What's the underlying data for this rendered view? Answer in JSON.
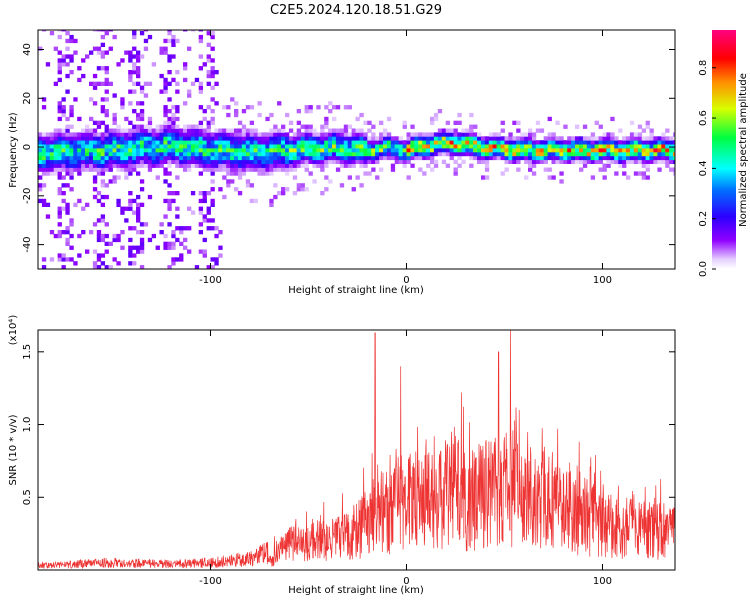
{
  "figure_title": "C2E5.2024.120.18.51.G29",
  "colors": {
    "snr_line": "#ee3333",
    "axes": "#000000",
    "background": "#ffffff"
  },
  "chart_data": [
    {
      "type": "heatmap",
      "title": "C2E5.2024.120.18.51.G29",
      "xlabel": "Height of straight line (km)",
      "ylabel": "Frequency (Hz)",
      "xlim": [
        -188,
        137
      ],
      "ylim": [
        -50,
        48
      ],
      "xticks": [
        -100,
        0,
        100
      ],
      "xtick_labels": [
        "-100",
        "0",
        "100"
      ],
      "yticks": [
        -40,
        -20,
        0,
        20,
        40
      ],
      "ytick_labels": [
        "-40",
        "-20",
        "0",
        "20",
        "40"
      ],
      "grid": false,
      "colormap": "rainbow (white/violet → blue → cyan → green → yellow → red → magenta)",
      "colorbar": {
        "label": "Normalized spectral amplitude",
        "range": [
          0,
          0.95
        ],
        "ticks": [
          0.0,
          0.2,
          0.4,
          0.6,
          0.8
        ],
        "tick_labels": [
          "0.0",
          "0.2",
          "0.4",
          "0.6",
          "0.8"
        ]
      },
      "ridge_center_hz": {
        "x": [
          -188,
          -150,
          -120,
          -100,
          -80,
          -60,
          -40,
          -20,
          -10,
          0,
          10,
          20,
          25,
          30,
          40,
          60,
          80,
          100,
          120,
          137
        ],
        "y": [
          -3,
          -2,
          0,
          -2,
          -3,
          -2,
          -1,
          -2,
          -1,
          -2,
          0,
          1,
          1,
          0,
          -1,
          -2,
          -2,
          -2,
          -2,
          -2
        ]
      }
    },
    {
      "type": "line",
      "xlabel": "Height of straight line (km)",
      "ylabel": "SNR (10 * v/v)",
      "y_multiplier": "(x10⁴)",
      "xlim": [
        -188,
        137
      ],
      "ylim": [
        0,
        1.65
      ],
      "xticks": [
        -100,
        0,
        100
      ],
      "xtick_labels": [
        "-100",
        "0",
        "100"
      ],
      "yticks": [
        0.5,
        1.0,
        1.5
      ],
      "ytick_labels": [
        "0.5",
        "1.0",
        "1.5"
      ],
      "grid": false,
      "series": [
        {
          "envelope_x": [
            -188,
            -150,
            -120,
            -100,
            -80,
            -70,
            -60,
            -50,
            -40,
            -30,
            -20,
            -10,
            0,
            10,
            20,
            25,
            30,
            40,
            50,
            55,
            60,
            70,
            80,
            90,
            100,
            110,
            120,
            130,
            137
          ],
          "envelope_y": [
            0.03,
            0.05,
            0.04,
            0.05,
            0.08,
            0.12,
            0.3,
            0.32,
            0.35,
            0.4,
            0.55,
            0.7,
            0.85,
            0.8,
            0.95,
            1.0,
            0.85,
            0.9,
            1.0,
            1.05,
            0.9,
            0.8,
            0.72,
            0.65,
            0.55,
            0.5,
            0.48,
            0.45,
            0.44
          ],
          "peaks": [
            {
              "x": -16,
              "y": 1.63
            },
            {
              "x": 53,
              "y": 1.65
            },
            {
              "x": 47,
              "y": 1.5
            },
            {
              "x": 28,
              "y": 1.22
            },
            {
              "x": -3,
              "y": 1.4
            }
          ]
        }
      ]
    }
  ]
}
